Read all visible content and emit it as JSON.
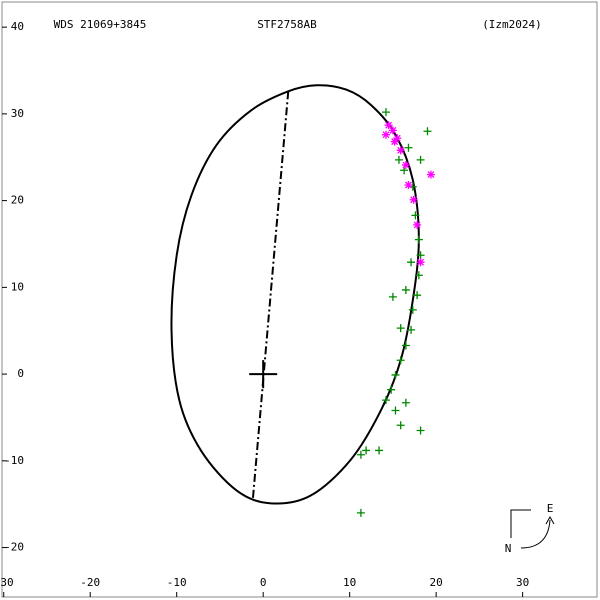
{
  "chart_data": {
    "type": "orbit",
    "title": "WDS 21069+3845",
    "subtitle": "STF2758AB",
    "source": "(Izm2024)",
    "xlim": [
      -30.2,
      38.6
    ],
    "ylim": [
      -25.7,
      42.9
    ],
    "xticks": [
      -30,
      -20,
      -10,
      0,
      10,
      20,
      30
    ],
    "yticks": [
      -20,
      -10,
      0,
      10,
      20,
      30,
      40
    ],
    "primary": {
      "x": 0,
      "y": 0
    },
    "orbit": {
      "color": "#000000",
      "x": [
        6.2,
        2.9,
        -1.4,
        -5.4,
        -8.3,
        -10.0,
        -10.6,
        -9.7,
        -7.2,
        -3.1,
        0.9,
        5.5,
        10.1,
        13.6,
        15.9,
        17.3,
        18.0,
        17.3,
        15.3,
        12.5,
        9.6
      ],
      "y": [
        33.3,
        32.6,
        30.4,
        26.4,
        20.6,
        13.7,
        5.1,
        -3.0,
        -8.8,
        -13.4,
        -14.9,
        -14.0,
        -9.9,
        -4.2,
        1.6,
        8.5,
        15.5,
        22.4,
        27.6,
        31.0,
        32.8
      ]
    },
    "line_of_nodes": {
      "x": [
        2.9,
        -1.2
      ],
      "y": [
        32.6,
        -14.5
      ]
    },
    "series": [
      {
        "color": "#008800",
        "marker": "plus",
        "x": [
          14.2,
          19.0,
          16.8,
          18.2,
          17.3,
          17.6,
          18.0,
          18.2,
          17.1,
          18.0,
          15.0,
          16.5,
          17.8,
          17.3,
          15.9,
          17.1,
          16.5,
          15.9,
          15.3,
          14.8,
          16.5,
          14.2,
          15.3,
          18.2,
          15.9,
          13.4,
          11.3,
          11.9,
          11.3,
          15.7,
          16.3
        ],
        "y": [
          30.2,
          28.0,
          26.1,
          24.7,
          21.6,
          18.3,
          15.5,
          13.7,
          12.9,
          11.4,
          8.9,
          9.7,
          9.1,
          7.4,
          5.3,
          5.1,
          3.3,
          1.6,
          -0.1,
          -1.8,
          -3.3,
          -3.0,
          -4.2,
          -6.5,
          -5.9,
          -8.8,
          -9.3,
          -8.8,
          -16.0,
          24.7,
          23.5
        ]
      },
      {
        "color": "#ff00ff",
        "marker": "star",
        "x": [
          14.5,
          15.0,
          15.5,
          15.9,
          16.5,
          16.8,
          19.4,
          17.4,
          17.8,
          18.2,
          14.2,
          15.2
        ],
        "y": [
          28.7,
          28.1,
          27.2,
          25.8,
          24.1,
          21.8,
          23.0,
          20.1,
          17.2,
          12.9,
          27.6,
          26.8
        ]
      }
    ],
    "compass": {
      "east": "E",
      "north": "N"
    }
  }
}
